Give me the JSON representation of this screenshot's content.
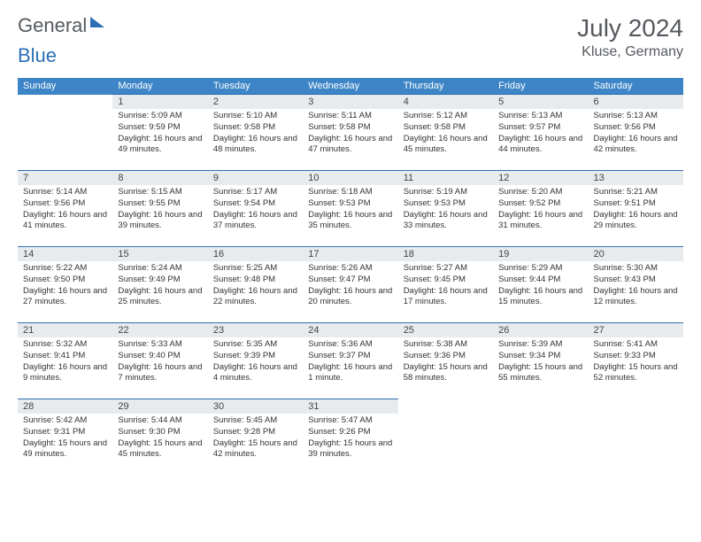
{
  "logo": {
    "text1": "General",
    "text2": "Blue"
  },
  "title": {
    "month": "July 2024",
    "location": "Kluse, Germany"
  },
  "colors": {
    "header_bg": "#3d85c6",
    "header_text": "#ffffff",
    "row_border": "#2d6fb5",
    "daynum_bg": "#e8ebee",
    "body_text": "#333333",
    "title_text": "#55595e"
  },
  "weekdays": [
    "Sunday",
    "Monday",
    "Tuesday",
    "Wednesday",
    "Thursday",
    "Friday",
    "Saturday"
  ],
  "days": {
    "1": {
      "sunrise": "5:09 AM",
      "sunset": "9:59 PM",
      "daylight": "16 hours and 49 minutes."
    },
    "2": {
      "sunrise": "5:10 AM",
      "sunset": "9:58 PM",
      "daylight": "16 hours and 48 minutes."
    },
    "3": {
      "sunrise": "5:11 AM",
      "sunset": "9:58 PM",
      "daylight": "16 hours and 47 minutes."
    },
    "4": {
      "sunrise": "5:12 AM",
      "sunset": "9:58 PM",
      "daylight": "16 hours and 45 minutes."
    },
    "5": {
      "sunrise": "5:13 AM",
      "sunset": "9:57 PM",
      "daylight": "16 hours and 44 minutes."
    },
    "6": {
      "sunrise": "5:13 AM",
      "sunset": "9:56 PM",
      "daylight": "16 hours and 42 minutes."
    },
    "7": {
      "sunrise": "5:14 AM",
      "sunset": "9:56 PM",
      "daylight": "16 hours and 41 minutes."
    },
    "8": {
      "sunrise": "5:15 AM",
      "sunset": "9:55 PM",
      "daylight": "16 hours and 39 minutes."
    },
    "9": {
      "sunrise": "5:17 AM",
      "sunset": "9:54 PM",
      "daylight": "16 hours and 37 minutes."
    },
    "10": {
      "sunrise": "5:18 AM",
      "sunset": "9:53 PM",
      "daylight": "16 hours and 35 minutes."
    },
    "11": {
      "sunrise": "5:19 AM",
      "sunset": "9:53 PM",
      "daylight": "16 hours and 33 minutes."
    },
    "12": {
      "sunrise": "5:20 AM",
      "sunset": "9:52 PM",
      "daylight": "16 hours and 31 minutes."
    },
    "13": {
      "sunrise": "5:21 AM",
      "sunset": "9:51 PM",
      "daylight": "16 hours and 29 minutes."
    },
    "14": {
      "sunrise": "5:22 AM",
      "sunset": "9:50 PM",
      "daylight": "16 hours and 27 minutes."
    },
    "15": {
      "sunrise": "5:24 AM",
      "sunset": "9:49 PM",
      "daylight": "16 hours and 25 minutes."
    },
    "16": {
      "sunrise": "5:25 AM",
      "sunset": "9:48 PM",
      "daylight": "16 hours and 22 minutes."
    },
    "17": {
      "sunrise": "5:26 AM",
      "sunset": "9:47 PM",
      "daylight": "16 hours and 20 minutes."
    },
    "18": {
      "sunrise": "5:27 AM",
      "sunset": "9:45 PM",
      "daylight": "16 hours and 17 minutes."
    },
    "19": {
      "sunrise": "5:29 AM",
      "sunset": "9:44 PM",
      "daylight": "16 hours and 15 minutes."
    },
    "20": {
      "sunrise": "5:30 AM",
      "sunset": "9:43 PM",
      "daylight": "16 hours and 12 minutes."
    },
    "21": {
      "sunrise": "5:32 AM",
      "sunset": "9:41 PM",
      "daylight": "16 hours and 9 minutes."
    },
    "22": {
      "sunrise": "5:33 AM",
      "sunset": "9:40 PM",
      "daylight": "16 hours and 7 minutes."
    },
    "23": {
      "sunrise": "5:35 AM",
      "sunset": "9:39 PM",
      "daylight": "16 hours and 4 minutes."
    },
    "24": {
      "sunrise": "5:36 AM",
      "sunset": "9:37 PM",
      "daylight": "16 hours and 1 minute."
    },
    "25": {
      "sunrise": "5:38 AM",
      "sunset": "9:36 PM",
      "daylight": "15 hours and 58 minutes."
    },
    "26": {
      "sunrise": "5:39 AM",
      "sunset": "9:34 PM",
      "daylight": "15 hours and 55 minutes."
    },
    "27": {
      "sunrise": "5:41 AM",
      "sunset": "9:33 PM",
      "daylight": "15 hours and 52 minutes."
    },
    "28": {
      "sunrise": "5:42 AM",
      "sunset": "9:31 PM",
      "daylight": "15 hours and 49 minutes."
    },
    "29": {
      "sunrise": "5:44 AM",
      "sunset": "9:30 PM",
      "daylight": "15 hours and 45 minutes."
    },
    "30": {
      "sunrise": "5:45 AM",
      "sunset": "9:28 PM",
      "daylight": "15 hours and 42 minutes."
    },
    "31": {
      "sunrise": "5:47 AM",
      "sunset": "9:26 PM",
      "daylight": "15 hours and 39 minutes."
    }
  },
  "grid": [
    [
      null,
      "1",
      "2",
      "3",
      "4",
      "5",
      "6"
    ],
    [
      "7",
      "8",
      "9",
      "10",
      "11",
      "12",
      "13"
    ],
    [
      "14",
      "15",
      "16",
      "17",
      "18",
      "19",
      "20"
    ],
    [
      "21",
      "22",
      "23",
      "24",
      "25",
      "26",
      "27"
    ],
    [
      "28",
      "29",
      "30",
      "31",
      null,
      null,
      null
    ]
  ],
  "labels": {
    "sunrise": "Sunrise: ",
    "sunset": "Sunset: ",
    "daylight": "Daylight: "
  }
}
